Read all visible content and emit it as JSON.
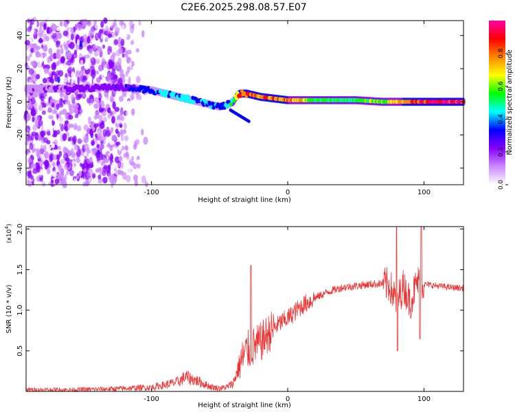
{
  "title": "C2E6.2025.298.08.57.E07",
  "chart_data": [
    {
      "type": "heatmap",
      "xlabel": "Height of straight line (km)",
      "ylabel": "Frequency (Hz)",
      "xlim": [
        -192,
        129
      ],
      "ylim": [
        -50,
        49
      ],
      "xticks": [
        -100,
        0,
        100
      ],
      "xtick_labels": [
        "-100",
        "0",
        "100"
      ],
      "yticks": [
        -40,
        -20,
        0,
        20,
        40
      ],
      "ytick_labels": [
        "-40",
        "-20",
        "0",
        "20",
        "40"
      ],
      "colorbar": {
        "label": "Normalized spectral amplitude",
        "range": [
          0,
          1
        ],
        "ticks": [
          0.0,
          0.2,
          0.4,
          0.6,
          0.8
        ],
        "tick_labels": [
          "0.0",
          "0.2",
          "0.4",
          "0.6",
          "0.8"
        ],
        "colors": [
          "#ffffff",
          "#cc88ff",
          "#8800ff",
          "#0000ff",
          "#00ffff",
          "#00ff00",
          "#ffff00",
          "#ff8800",
          "#ff0000",
          "#ff00aa"
        ]
      },
      "ridge": {
        "x": [
          -192,
          -150,
          -130,
          -110,
          -100,
          -90,
          -80,
          -70,
          -60,
          -50,
          -45,
          -40,
          -37,
          -35,
          -30,
          -25,
          -20,
          -10,
          0,
          10,
          20,
          30,
          50,
          70,
          80,
          90,
          100,
          110,
          129
        ],
        "freq": [
          8,
          8,
          9,
          8,
          7,
          5,
          3,
          1,
          -1,
          -3,
          -2,
          0,
          4,
          5,
          5,
          4,
          3,
          2,
          1,
          1,
          1,
          1,
          1,
          0,
          0,
          0,
          0,
          0,
          0
        ],
        "amplitude": [
          0.15,
          0.2,
          0.25,
          0.3,
          0.35,
          0.45,
          0.45,
          0.4,
          0.4,
          0.35,
          0.4,
          0.5,
          0.8,
          0.85,
          0.85,
          0.85,
          0.8,
          0.8,
          0.8,
          0.7,
          0.55,
          0.55,
          0.55,
          0.6,
          0.75,
          0.85,
          0.9,
          0.95,
          0.95
        ]
      },
      "noise_region_x": [
        -192,
        -95
      ]
    },
    {
      "type": "line",
      "xlabel": "Height of straight line (km)",
      "ylabel": "SNR (10 * v/v)",
      "multiplier_label": "(x10",
      "multiplier_exp": "4",
      "multiplier_close": ")",
      "xlim": [
        -192,
        129
      ],
      "ylim": [
        0,
        2.03
      ],
      "xticks": [
        -100,
        0,
        100
      ],
      "xtick_labels": [
        "-100",
        "0",
        "100"
      ],
      "yticks": [
        0.5,
        1.0,
        1.5,
        2.0
      ],
      "ytick_labels": [
        "0.5",
        "1.0",
        "1.5",
        "2.0"
      ],
      "series": [
        {
          "name": "SNR",
          "color": "#ee3333",
          "x": [
            -192,
            -160,
            -130,
            -100,
            -90,
            -80,
            -75,
            -70,
            -65,
            -60,
            -55,
            -50,
            -45,
            -40,
            -35,
            -30,
            -25,
            -20,
            -15,
            -10,
            -5,
            0,
            10,
            20,
            30,
            40,
            50,
            60,
            70,
            75,
            80,
            85,
            90,
            95,
            100,
            110,
            120,
            129
          ],
          "y": [
            0.02,
            0.02,
            0.03,
            0.05,
            0.08,
            0.12,
            0.18,
            0.15,
            0.12,
            0.08,
            0.05,
            0.04,
            0.05,
            0.1,
            0.35,
            0.5,
            0.55,
            0.6,
            0.7,
            0.78,
            0.85,
            0.9,
            1.05,
            1.15,
            1.23,
            1.28,
            1.3,
            1.32,
            1.33,
            1.3,
            1.1,
            1.3,
            1.1,
            1.35,
            1.32,
            1.3,
            1.28,
            1.27
          ],
          "spikes": [
            {
              "x": -27,
              "y": 1.55
            },
            {
              "x": 80,
              "y": 2.03
            },
            {
              "x": 80.5,
              "y": 0.5
            },
            {
              "x": 98,
              "y": 2.03
            },
            {
              "x": 97,
              "y": 0.65
            }
          ]
        }
      ]
    }
  ]
}
